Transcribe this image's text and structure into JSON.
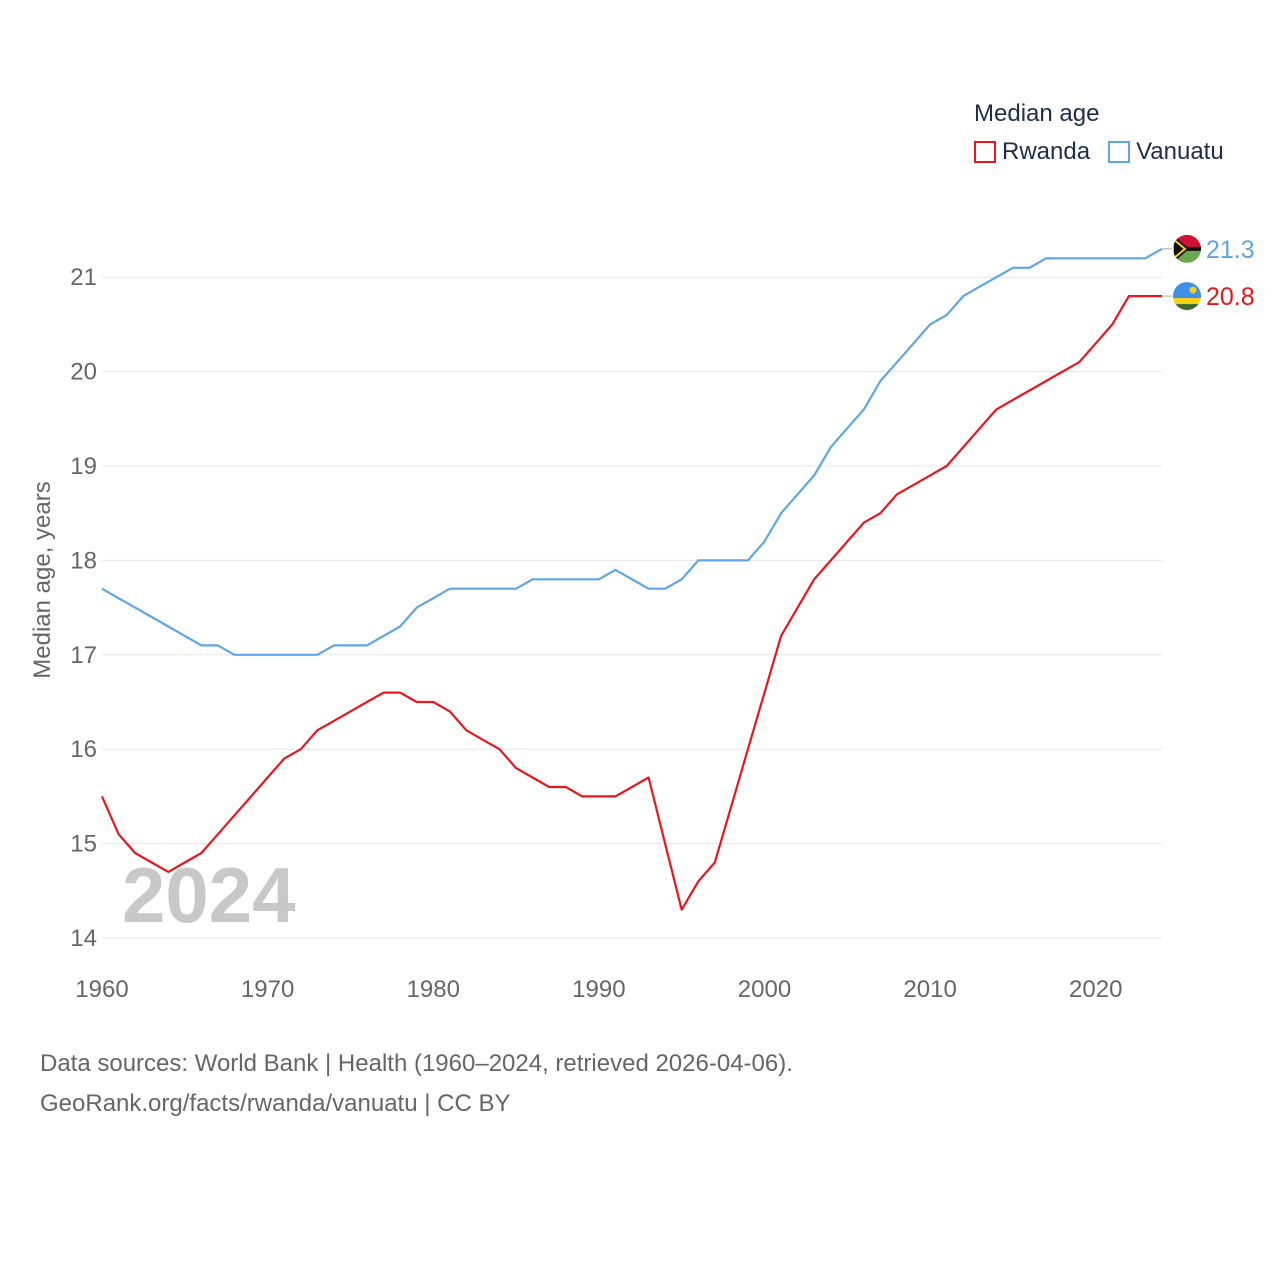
{
  "legend": {
    "title": "Median age",
    "items": [
      {
        "label": "Rwanda",
        "color": "#e8161d"
      },
      {
        "label": "Vanuatu",
        "color": "#5ea6e6"
      }
    ]
  },
  "footer": {
    "line1": "Data sources: World Bank | Health (1960–2024, retrieved 2026-04-06).",
    "line2": "GeoRank.org/facts/rwanda/vanuatu | CC BY"
  },
  "chart_data": {
    "type": "line",
    "title": "Median age",
    "xlabel": "",
    "ylabel": "Median age, years",
    "xlim": [
      1960,
      2024
    ],
    "ylim": [
      14,
      21.4
    ],
    "x_ticks": [
      1960,
      1970,
      1980,
      1990,
      2000,
      2010,
      2020
    ],
    "y_ticks": [
      14,
      15,
      16,
      17,
      18,
      19,
      20,
      21
    ],
    "grid": true,
    "year_watermark": "2024",
    "x": [
      1960,
      1961,
      1962,
      1963,
      1964,
      1965,
      1966,
      1967,
      1968,
      1969,
      1970,
      1971,
      1972,
      1973,
      1974,
      1975,
      1976,
      1977,
      1978,
      1979,
      1980,
      1981,
      1982,
      1983,
      1984,
      1985,
      1986,
      1987,
      1988,
      1989,
      1990,
      1991,
      1992,
      1993,
      1994,
      1995,
      1996,
      1997,
      1998,
      1999,
      2000,
      2001,
      2002,
      2003,
      2004,
      2005,
      2006,
      2007,
      2008,
      2009,
      2010,
      2011,
      2012,
      2013,
      2014,
      2015,
      2016,
      2017,
      2018,
      2019,
      2020,
      2021,
      2022,
      2023,
      2024
    ],
    "series": [
      {
        "name": "Rwanda",
        "color": "#e8161d",
        "end_label": "20.8",
        "values": [
          15.5,
          15.1,
          14.9,
          14.8,
          14.7,
          14.8,
          14.9,
          15.1,
          15.3,
          15.5,
          15.7,
          15.9,
          16.0,
          16.2,
          16.3,
          16.4,
          16.5,
          16.6,
          16.6,
          16.5,
          16.5,
          16.4,
          16.2,
          16.1,
          16.0,
          15.8,
          15.7,
          15.6,
          15.6,
          15.5,
          15.5,
          15.5,
          15.6,
          15.7,
          15.0,
          14.3,
          14.6,
          14.8,
          15.4,
          16.0,
          16.6,
          17.2,
          17.5,
          17.8,
          18.0,
          18.2,
          18.4,
          18.5,
          18.7,
          18.8,
          18.9,
          19.0,
          19.2,
          19.4,
          19.6,
          19.7,
          19.8,
          19.9,
          20.0,
          20.1,
          20.3,
          20.5,
          20.8,
          20.8,
          20.8
        ]
      },
      {
        "name": "Vanuatu",
        "color": "#5ea6e6",
        "end_label": "21.3",
        "values": [
          17.7,
          17.6,
          17.5,
          17.4,
          17.3,
          17.2,
          17.1,
          17.1,
          17.0,
          17.0,
          17.0,
          17.0,
          17.0,
          17.0,
          17.1,
          17.1,
          17.1,
          17.2,
          17.3,
          17.5,
          17.6,
          17.7,
          17.7,
          17.7,
          17.7,
          17.7,
          17.8,
          17.8,
          17.8,
          17.8,
          17.8,
          17.9,
          17.8,
          17.7,
          17.7,
          17.8,
          18.0,
          18.0,
          18.0,
          18.0,
          18.2,
          18.5,
          18.7,
          18.9,
          19.2,
          19.4,
          19.6,
          19.9,
          20.1,
          20.3,
          20.5,
          20.6,
          20.8,
          20.9,
          21.0,
          21.1,
          21.1,
          21.2,
          21.2,
          21.2,
          21.2,
          21.2,
          21.2,
          21.2,
          21.3
        ]
      }
    ]
  }
}
